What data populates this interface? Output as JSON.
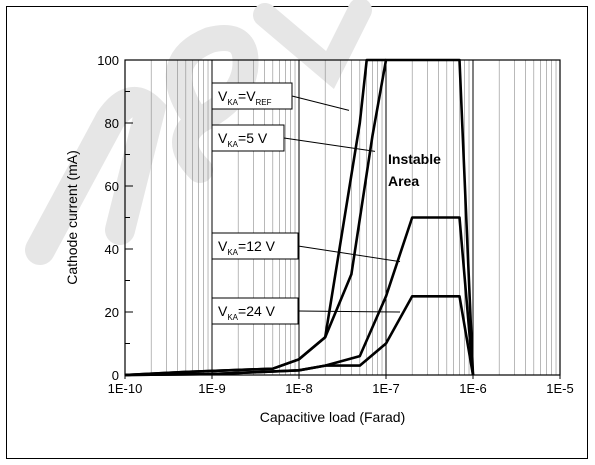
{
  "watermark_color": "#e6e6e6",
  "chart_data": {
    "type": "line",
    "title": "",
    "xlabel": "Capacitive load (Farad)",
    "ylabel": "Cathode current (mA)",
    "x_scale": "log",
    "xlim": [
      1e-10,
      1e-05
    ],
    "ylim": [
      0,
      100
    ],
    "x_tick_labels": [
      "1E-10",
      "1E-9",
      "1E-8",
      "1E-7",
      "1E-6",
      "1E-5"
    ],
    "y_tick_labels": [
      "0",
      "20",
      "40",
      "60",
      "80",
      "100"
    ],
    "grid": true,
    "annotation": {
      "line1": "Instable",
      "line2": "Area"
    },
    "series": [
      {
        "label_main": "V",
        "label_sub": "KA",
        "label_mid": "=V",
        "label_sub2": "REF",
        "label_end": "",
        "x": [
          1e-10,
          5e-10,
          5e-09,
          1e-08,
          2e-08,
          5e-08,
          6e-08,
          1e-07
        ],
        "y": [
          0,
          1,
          2,
          5,
          12,
          80,
          100,
          100
        ]
      },
      {
        "label_main": "V",
        "label_sub": "KA",
        "label_mid": "=5 V",
        "label_sub2": "",
        "label_end": "",
        "x": [
          1e-10,
          5e-10,
          5e-09,
          1e-08,
          2e-08,
          4e-08,
          7e-08,
          1e-07,
          3e-07,
          6e-07,
          7e-07,
          1e-06
        ],
        "y": [
          0,
          1,
          2,
          5,
          12,
          32,
          76,
          100,
          100,
          100,
          100,
          0
        ]
      },
      {
        "label_main": "V",
        "label_sub": "KA",
        "label_mid": "=12 V",
        "label_sub2": "",
        "label_end": "",
        "x": [
          1e-10,
          1e-09,
          1e-08,
          2e-08,
          5e-08,
          1e-07,
          2e-07,
          3e-07,
          5e-07,
          7e-07,
          1e-06
        ],
        "y": [
          0,
          0.3,
          1.5,
          3,
          6,
          25,
          50,
          50,
          50,
          50,
          0
        ]
      },
      {
        "label_main": "V",
        "label_sub": "KA",
        "label_mid": "=24 V",
        "label_sub2": "",
        "label_end": "",
        "x": [
          1e-10,
          1e-09,
          1e-08,
          2e-08,
          5e-08,
          1e-07,
          2e-07,
          3e-07,
          5e-07,
          7e-07,
          1e-06
        ],
        "y": [
          0,
          0.3,
          1.5,
          3,
          3,
          10,
          25,
          25,
          25,
          25,
          0
        ]
      }
    ]
  }
}
